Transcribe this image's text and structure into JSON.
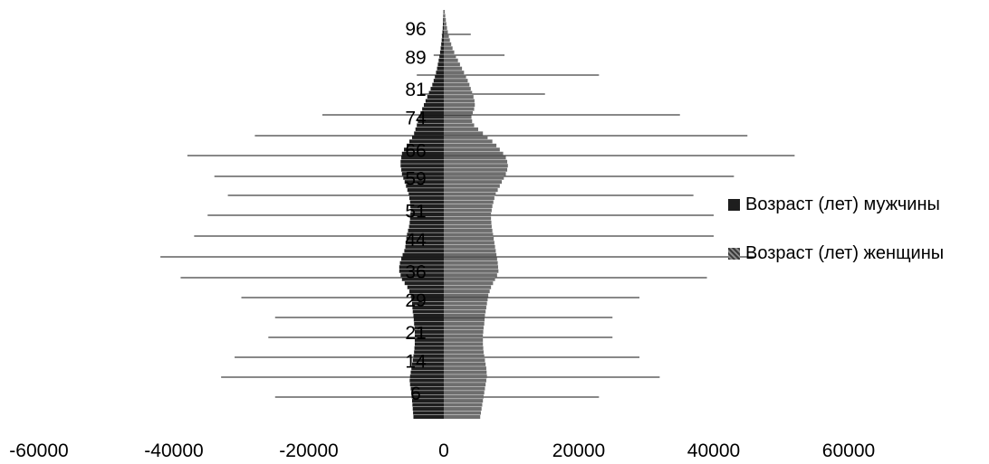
{
  "chart_data": {
    "type": "bar",
    "orientation": "horizontal",
    "chart_subtype": "population-pyramid",
    "xlim": [
      -60000,
      60000
    ],
    "x_ticks": [
      "-60000",
      "-40000",
      "-20000",
      "0",
      "20000",
      "40000",
      "60000"
    ],
    "y_tick_labels": [
      "96",
      "89",
      "81",
      "74",
      "66",
      "59",
      "51",
      "44",
      "36",
      "29",
      "21",
      "14",
      "6"
    ],
    "ages": [
      100,
      99,
      98,
      97,
      96,
      95,
      94,
      93,
      92,
      91,
      90,
      89,
      88,
      87,
      86,
      85,
      84,
      83,
      82,
      81,
      80,
      79,
      78,
      77,
      76,
      75,
      74,
      73,
      72,
      71,
      70,
      69,
      68,
      67,
      66,
      65,
      64,
      63,
      62,
      61,
      60,
      59,
      58,
      57,
      56,
      55,
      54,
      53,
      52,
      51,
      50,
      49,
      48,
      47,
      46,
      45,
      44,
      43,
      42,
      41,
      40,
      39,
      38,
      37,
      36,
      35,
      34,
      33,
      32,
      31,
      30,
      29,
      28,
      27,
      26,
      25,
      24,
      23,
      22,
      21,
      20,
      19,
      18,
      17,
      16,
      15,
      14,
      13,
      12,
      11,
      10,
      9,
      8,
      7,
      6,
      5,
      4,
      3,
      2,
      1,
      0
    ],
    "series": [
      {
        "name": "Возраст (лет) мужчины",
        "side": "left",
        "color": "#1e1e1e",
        "values": [
          -50,
          -70,
          -100,
          -130,
          -160,
          -200,
          -250,
          -310,
          -380,
          -460,
          -550,
          -650,
          -760,
          -880,
          -1000,
          -1150,
          -1320,
          -1500,
          -1700,
          -1950,
          -2200,
          -2450,
          -2700,
          -2950,
          -3200,
          -3450,
          -3650,
          -3850,
          -4000,
          -4200,
          -4400,
          -4700,
          -5100,
          -5500,
          -5900,
          -6200,
          -6300,
          -6400,
          -6400,
          -6300,
          -6200,
          -6000,
          -5800,
          -5600,
          -5400,
          -5200,
          -5100,
          -5000,
          -4950,
          -4900,
          -4950,
          -5000,
          -5050,
          -5150,
          -5300,
          -5450,
          -5550,
          -5650,
          -5700,
          -5850,
          -6100,
          -6300,
          -6500,
          -6600,
          -6600,
          -6400,
          -6200,
          -5800,
          -5400,
          -5100,
          -4900,
          -4800,
          -4700,
          -4650,
          -4600,
          -4500,
          -4450,
          -4400,
          -4350,
          -4300,
          -4300,
          -4300,
          -4300,
          -4350,
          -4400,
          -4500,
          -4600,
          -4700,
          -4800,
          -4900,
          -5000,
          -5050,
          -5000,
          -4900,
          -4800,
          -4750,
          -4700,
          -4650,
          -4600,
          -4550,
          -4500
        ]
      },
      {
        "name": "Возраст (лет) женщины",
        "side": "right",
        "color": "#6e6e6e",
        "values": [
          150,
          220,
          300,
          380,
          480,
          600,
          750,
          900,
          1100,
          1300,
          1550,
          1800,
          2100,
          2400,
          2700,
          3000,
          3300,
          3550,
          3800,
          4000,
          4200,
          4400,
          4550,
          4600,
          4500,
          4300,
          4100,
          4200,
          4500,
          5100,
          5800,
          6500,
          7200,
          7800,
          8300,
          8800,
          9200,
          9400,
          9500,
          9400,
          9200,
          8900,
          8600,
          8300,
          8000,
          7700,
          7500,
          7350,
          7200,
          7100,
          7000,
          7000,
          7050,
          7100,
          7200,
          7300,
          7400,
          7500,
          7600,
          7700,
          7800,
          7900,
          8000,
          8050,
          8100,
          7900,
          7600,
          7300,
          7000,
          6800,
          6600,
          6500,
          6400,
          6300,
          6200,
          6100,
          6050,
          6000,
          5900,
          5850,
          5800,
          5800,
          5800,
          5850,
          5900,
          6000,
          6100,
          6200,
          6300,
          6350,
          6400,
          6300,
          6200,
          6100,
          6000,
          5900,
          5800,
          5700,
          5600,
          5500,
          5400
        ]
      }
    ]
  }
}
